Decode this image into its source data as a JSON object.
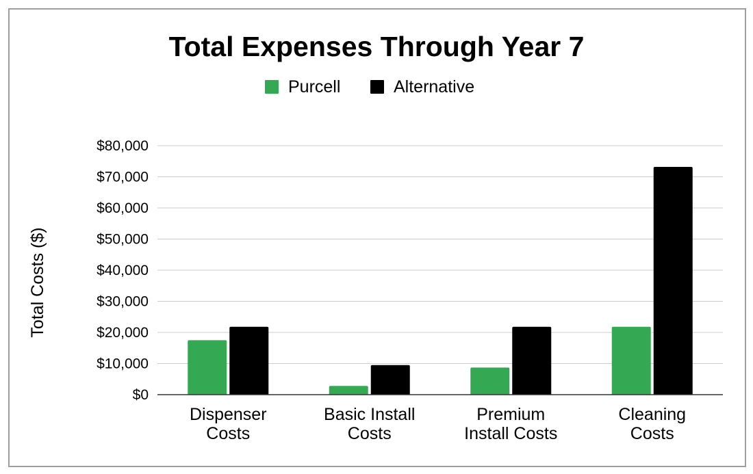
{
  "chart_data": {
    "type": "bar",
    "title": "Total Expenses Through Year 7",
    "xlabel": "",
    "ylabel": "Total Costs ($)",
    "categories": [
      [
        "Dispenser",
        "Costs"
      ],
      [
        "Basic Install",
        "Costs"
      ],
      [
        "Premium",
        "Install Costs"
      ],
      [
        "Cleaning",
        "Costs"
      ]
    ],
    "series": [
      {
        "name": "Purcell",
        "color": "#34a853",
        "values": [
          17500,
          2800,
          8700,
          21800
        ]
      },
      {
        "name": "Alternative",
        "color": "#000000",
        "values": [
          21800,
          9500,
          21800,
          73200
        ]
      }
    ],
    "ylim": [
      0,
      80000
    ],
    "yticks": [
      0,
      10000,
      20000,
      30000,
      40000,
      50000,
      60000,
      70000,
      80000
    ],
    "ytick_labels": [
      "$0",
      "$10,000",
      "$20,000",
      "$30,000",
      "$40,000",
      "$50,000",
      "$60,000",
      "$70,000",
      "$80,000"
    ],
    "grid": true,
    "legend_position": "top-center"
  }
}
